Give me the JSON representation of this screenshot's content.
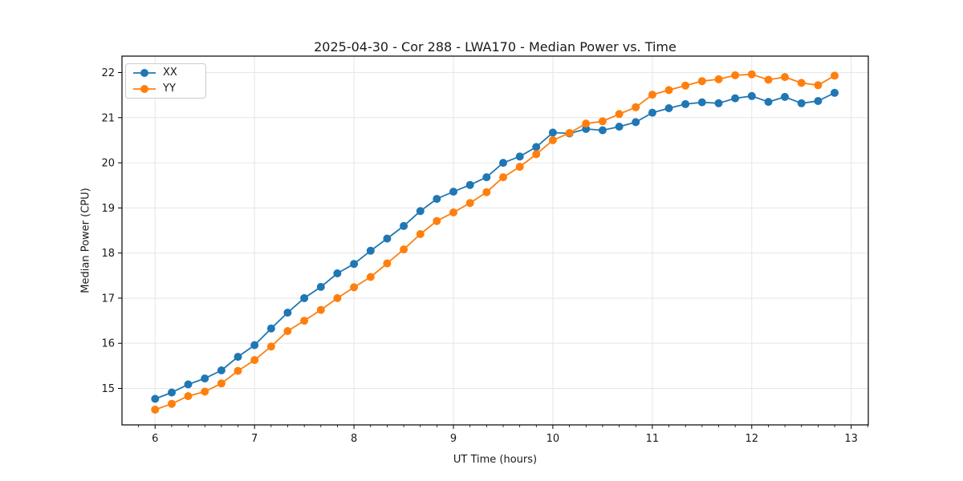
{
  "figure": {
    "background": "#ffffff"
  },
  "chart_data": {
    "type": "line",
    "title": "2025-04-30 - Cor 288 - LWA170 - Median Power vs. Time",
    "xlabel": "UT Time (hours)",
    "ylabel": "Median Power (CPU)",
    "x": [
      6,
      6.167,
      6.333,
      6.5,
      6.667,
      6.833,
      7,
      7.167,
      7.333,
      7.5,
      7.667,
      7.833,
      8,
      8.167,
      8.333,
      8.5,
      8.667,
      8.833,
      9,
      9.167,
      9.333,
      9.5,
      9.667,
      9.833,
      10,
      10.167,
      10.333,
      10.5,
      10.667,
      10.833,
      11,
      11.167,
      11.333,
      11.5,
      11.667,
      11.833,
      12,
      12.167,
      12.333,
      12.5,
      12.667,
      12.833
    ],
    "series": [
      {
        "name": "XX",
        "color": "#1f77b4",
        "marker": "circle",
        "values": [
          14.77,
          14.91,
          15.09,
          15.22,
          15.4,
          15.7,
          15.96,
          16.33,
          16.68,
          17.0,
          17.25,
          17.55,
          17.76,
          18.05,
          18.32,
          18.6,
          18.93,
          19.2,
          19.36,
          19.51,
          19.68,
          20.0,
          20.14,
          20.35,
          20.67,
          20.65,
          20.75,
          20.72,
          20.8,
          20.9,
          21.11,
          21.21,
          21.3,
          21.34,
          21.32,
          21.43,
          21.48,
          21.35,
          21.46,
          21.32,
          21.37,
          21.55
        ]
      },
      {
        "name": "YY",
        "color": "#ff7f0e",
        "marker": "circle",
        "values": [
          14.53,
          14.66,
          14.83,
          14.93,
          15.11,
          15.39,
          15.63,
          15.93,
          16.27,
          16.5,
          16.74,
          17.0,
          17.24,
          17.47,
          17.77,
          18.08,
          18.42,
          18.71,
          18.9,
          19.11,
          19.35,
          19.68,
          19.91,
          20.19,
          20.5,
          20.66,
          20.87,
          20.92,
          21.08,
          21.23,
          21.51,
          21.61,
          21.71,
          21.81,
          21.85,
          21.94,
          21.96,
          21.84,
          21.9,
          21.77,
          21.72,
          21.93
        ]
      }
    ],
    "xlim": [
      5.667,
      13.172
    ],
    "ylim": [
      14.192,
      22.364
    ],
    "xticks": [
      6,
      7,
      8,
      9,
      10,
      11,
      12,
      13
    ],
    "yticks": [
      15,
      16,
      17,
      18,
      19,
      20,
      21,
      22
    ],
    "x_minor_step": 0.16667,
    "grid": true,
    "legend": {
      "position": "upper left",
      "entries": [
        "XX",
        "YY"
      ]
    },
    "colors": {
      "grid": "#e6e6e6",
      "frame": "#000000",
      "text": "#1a1a1a"
    }
  }
}
